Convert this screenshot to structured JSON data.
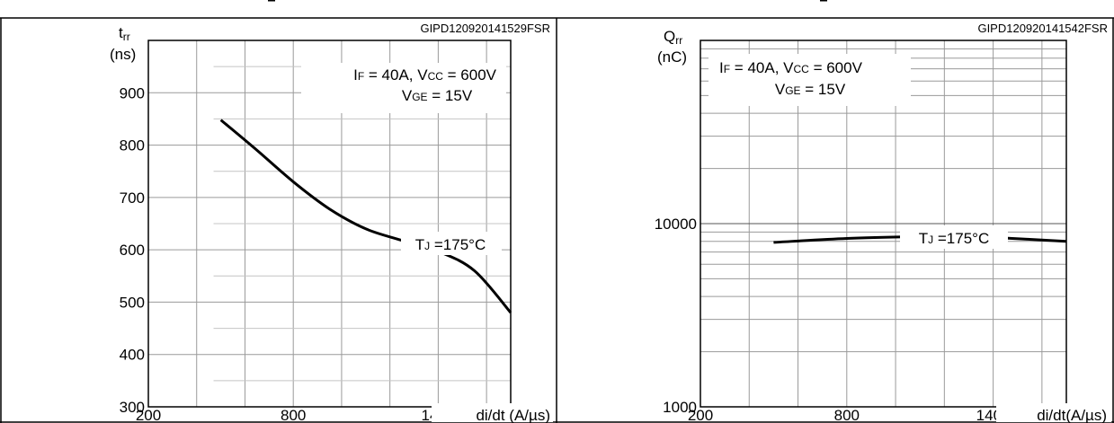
{
  "chart_data": [
    {
      "type": "line",
      "code": "GIPD120920141529FSR",
      "ylabel_main": "t",
      "ylabel_sub": "rr",
      "yunit": "(ns)",
      "xlabel": "di/dt (A/µs)",
      "xlim": [
        200,
        1700
      ],
      "ylim": [
        300,
        1000
      ],
      "xscale": "linear",
      "yscale": "linear",
      "xticks": [
        200,
        800,
        1400
      ],
      "yticks": [
        300,
        400,
        500,
        600,
        700,
        800,
        900
      ],
      "grid": true,
      "condition_line1": [
        {
          "text": "I",
          "sub": false
        },
        {
          "text": "F",
          "sub": true
        },
        {
          "text": " = 40A, V",
          "sub": false
        },
        {
          "text": "CC",
          "sub": true
        },
        {
          "text": " = 600V",
          "sub": false
        }
      ],
      "condition_line2": [
        {
          "text": "V",
          "sub": false
        },
        {
          "text": "GE",
          "sub": true
        },
        {
          "text": " = 15V",
          "sub": false
        }
      ],
      "curve_label": [
        {
          "text": "T",
          "sub": false
        },
        {
          "text": "J",
          "sub": true
        },
        {
          "text": " =175°C",
          "sub": false
        }
      ],
      "series": [
        {
          "x": [
            500,
            650,
            800,
            950,
            1100,
            1250,
            1400,
            1550,
            1700
          ],
          "y": [
            848,
            790,
            730,
            678,
            640,
            618,
            597,
            560,
            480
          ]
        }
      ]
    },
    {
      "type": "line",
      "code": "GIPD120920141542FSR",
      "ylabel_main": "Q",
      "ylabel_sub": "rr",
      "yunit": "(nC)",
      "xlabel": "di/dt(A/µs)",
      "xlim": [
        200,
        1700
      ],
      "ylim": [
        1000,
        100000
      ],
      "xscale": "linear",
      "yscale": "log",
      "xticks": [
        200,
        800,
        1400
      ],
      "yticks": [
        1000,
        10000
      ],
      "grid": true,
      "condition_line1": [
        {
          "text": "I",
          "sub": false
        },
        {
          "text": "F",
          "sub": true
        },
        {
          "text": " = 40A, V",
          "sub": false
        },
        {
          "text": "CC",
          "sub": true
        },
        {
          "text": " = 600V",
          "sub": false
        }
      ],
      "condition_line2": [
        {
          "text": "V",
          "sub": false
        },
        {
          "text": "GE",
          "sub": true
        },
        {
          "text": " = 15V",
          "sub": false
        }
      ],
      "curve_label": [
        {
          "text": "T",
          "sub": false
        },
        {
          "text": "J",
          "sub": true
        },
        {
          "text": " =175°C",
          "sub": false
        }
      ],
      "series": [
        {
          "x": [
            500,
            800,
            1100,
            1250,
            1400,
            1700
          ],
          "y": [
            7900,
            8300,
            8500,
            8500,
            8400,
            8000
          ]
        }
      ]
    }
  ]
}
